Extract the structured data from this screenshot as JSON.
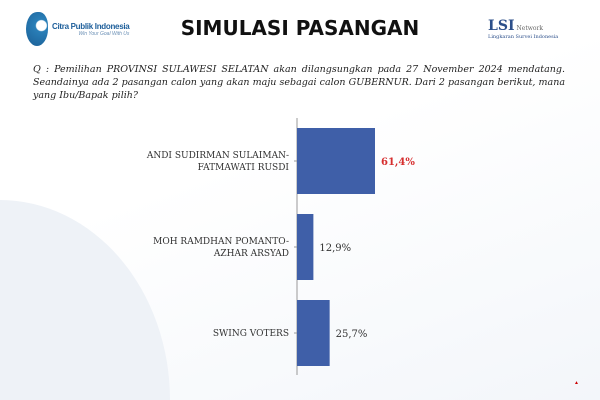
{
  "header": {
    "title": "SIMULASI PASANGAN",
    "left_logo": {
      "name": "Citra Publik Indonesia",
      "tagline": "Win Your Goal With Us"
    },
    "right_logo": {
      "name": "LSI",
      "suffix": "Network",
      "subtitle": "Lingkaran Survei Indonesia"
    }
  },
  "question": "Q : Pemilihan PROVINSI SULAWESI SELATAN akan dilangsungkan pada 27 November 2024 mendatang. Seandainya ada 2 pasangan calon yang akan maju sebagai calon GUBERNUR. Dari 2 pasangan berikut, mana yang Ibu/Bapak pilih?",
  "chart_data": {
    "type": "bar",
    "orientation": "horizontal",
    "categories": [
      [
        "ANDI SUDIRMAN SULAIMAN-",
        "FATMAWATI RUSDI"
      ],
      [
        "MOH RAMDHAN POMANTO-",
        "AZHAR ARSYAD"
      ],
      [
        "SWING VOTERS"
      ]
    ],
    "values": [
      61.4,
      12.9,
      25.7
    ],
    "data_labels": [
      "61,4%",
      "12,9%",
      "25,7%"
    ],
    "label_colors": [
      "#d62f2f",
      "#333333",
      "#333333"
    ],
    "bar_color": "#3f5fa8",
    "xlim": [
      0,
      100
    ],
    "grid": false
  }
}
